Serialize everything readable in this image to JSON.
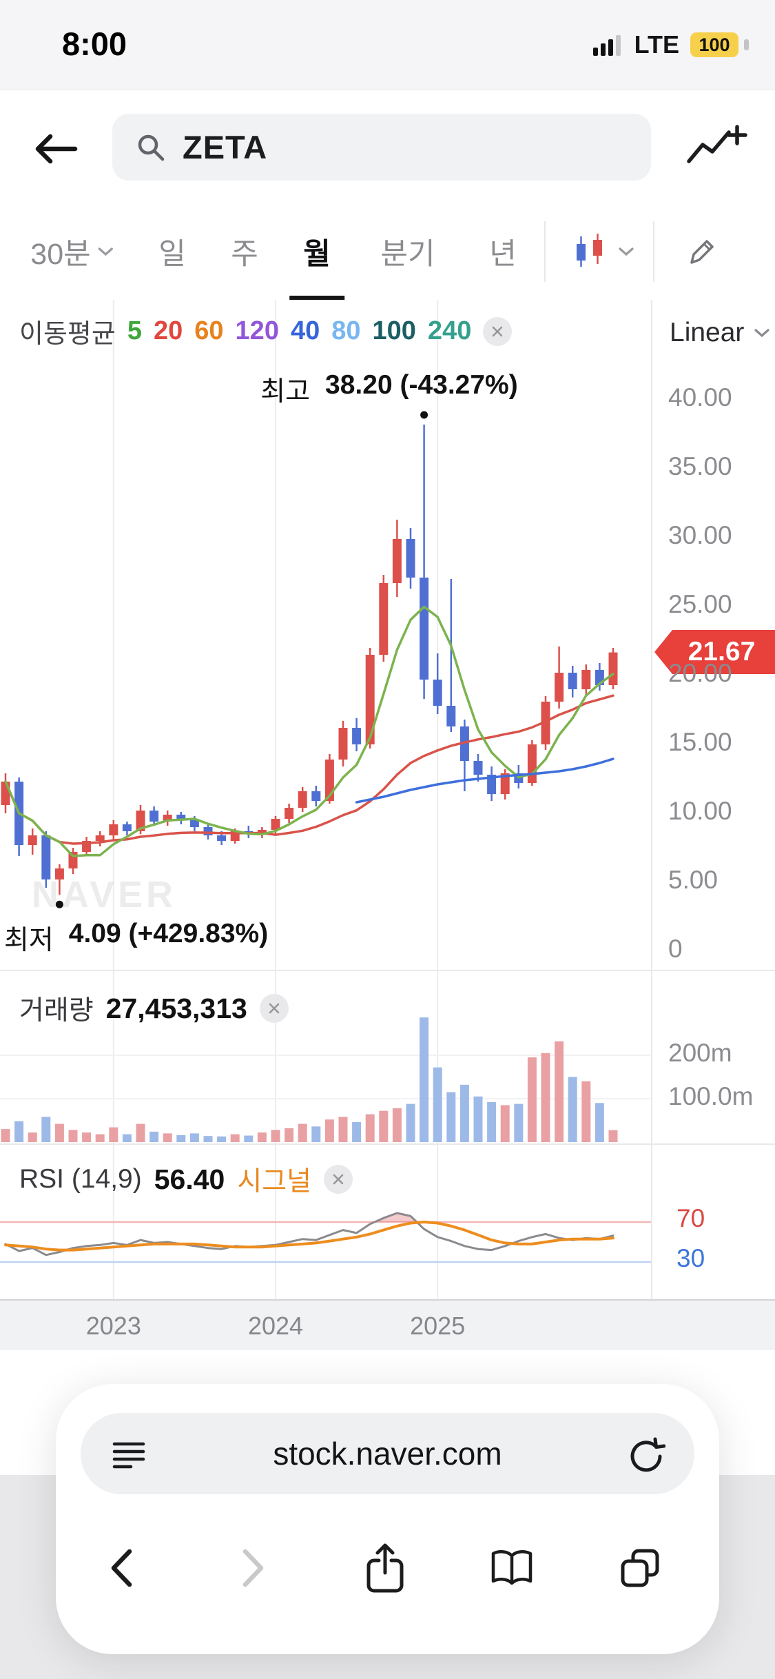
{
  "status_bar": {
    "time": "8:00",
    "network": "LTE",
    "battery_percent": "100"
  },
  "header": {
    "search_value": "ZETA"
  },
  "tabs": {
    "items": [
      {
        "label": "30분"
      },
      {
        "label": "일"
      },
      {
        "label": "주"
      },
      {
        "label": "월"
      },
      {
        "label": "분기"
      },
      {
        "label": "년"
      }
    ],
    "active_index": 3
  },
  "chart": {
    "ma_label": "이동평균",
    "ma_periods": [
      {
        "value": "5",
        "color": "#3fa63c"
      },
      {
        "value": "20",
        "color": "#e0473d"
      },
      {
        "value": "60",
        "color": "#e8821e"
      },
      {
        "value": "120",
        "color": "#9256d9"
      },
      {
        "value": "40",
        "color": "#3565d9"
      },
      {
        "value": "80",
        "color": "#78b6f2"
      },
      {
        "value": "100",
        "color": "#1b5e63"
      },
      {
        "value": "240",
        "color": "#35a08d"
      }
    ],
    "scale_label": "Linear",
    "high_label": "최고",
    "high_value": "38.20 (-43.27%)",
    "low_label": "최저",
    "low_value": "4.09 (+429.83%)",
    "current_price": "21.67",
    "watermark": "NAVER",
    "y_axis_labels": [
      "40.00",
      "35.00",
      "30.00",
      "25.00",
      "20.00",
      "15.00",
      "10.00",
      "5.00",
      "0"
    ]
  },
  "volume_panel": {
    "label": "거래량",
    "value": "27,453,313",
    "y_axis_labels": [
      "200m",
      "100.0m"
    ]
  },
  "rsi_panel": {
    "label": "RSI (14,9)",
    "value": "56.40",
    "signal_label": "시그널",
    "levels": [
      {
        "label": "70",
        "value": 70,
        "color": "#d84a42"
      },
      {
        "label": "30",
        "value": 30,
        "color": "#3b76d9"
      }
    ]
  },
  "browser": {
    "url": "stock.naver.com"
  },
  "chart_data": {
    "type": "candlestick",
    "interval": "monthly",
    "y_range": [
      0,
      42.5
    ],
    "candles": [
      [
        10.6,
        12.9,
        10.0,
        12.3,
        30
      ],
      [
        12.3,
        12.6,
        6.9,
        7.7,
        48
      ],
      [
        7.7,
        8.9,
        7.0,
        8.4,
        22
      ],
      [
        8.4,
        8.7,
        4.6,
        5.2,
        58
      ],
      [
        5.2,
        6.3,
        4.09,
        6.0,
        42
      ],
      [
        6.0,
        7.5,
        5.6,
        7.2,
        28
      ],
      [
        7.2,
        8.3,
        6.9,
        8.0,
        22
      ],
      [
        8.0,
        8.7,
        7.6,
        8.4,
        18
      ],
      [
        8.4,
        9.5,
        8.1,
        9.2,
        34
      ],
      [
        9.2,
        9.4,
        8.4,
        8.7,
        18
      ],
      [
        8.7,
        10.6,
        8.5,
        10.2,
        42
      ],
      [
        10.2,
        10.5,
        9.1,
        9.4,
        24
      ],
      [
        9.4,
        10.2,
        9.1,
        9.9,
        20
      ],
      [
        9.9,
        10.1,
        9.2,
        9.5,
        16
      ],
      [
        9.5,
        9.8,
        8.7,
        9.0,
        20
      ],
      [
        9.0,
        9.3,
        8.1,
        8.4,
        14
      ],
      [
        8.4,
        8.7,
        7.7,
        8.0,
        13
      ],
      [
        8.0,
        8.9,
        7.8,
        8.7,
        18
      ],
      [
        8.7,
        9.1,
        8.2,
        8.5,
        15
      ],
      [
        8.5,
        9.0,
        8.2,
        8.8,
        22
      ],
      [
        8.8,
        9.8,
        8.5,
        9.6,
        28
      ],
      [
        9.6,
        10.7,
        9.3,
        10.4,
        32
      ],
      [
        10.4,
        11.9,
        10.1,
        11.6,
        42
      ],
      [
        11.6,
        12.0,
        10.5,
        10.9,
        36
      ],
      [
        10.9,
        14.3,
        10.7,
        13.9,
        52
      ],
      [
        13.9,
        16.7,
        13.4,
        16.2,
        58
      ],
      [
        16.2,
        16.9,
        14.5,
        15.0,
        46
      ],
      [
        15.0,
        22.0,
        14.7,
        21.5,
        64
      ],
      [
        21.5,
        27.3,
        21.0,
        26.7,
        72
      ],
      [
        26.7,
        31.3,
        25.7,
        29.9,
        78
      ],
      [
        29.9,
        30.7,
        26.3,
        27.1,
        88
      ],
      [
        27.1,
        38.2,
        18.3,
        19.7,
        287
      ],
      [
        19.7,
        21.6,
        17.2,
        17.8,
        172
      ],
      [
        17.8,
        27.0,
        15.9,
        16.3,
        115
      ],
      [
        16.3,
        16.8,
        11.6,
        13.8,
        132
      ],
      [
        13.8,
        14.3,
        12.3,
        12.8,
        105
      ],
      [
        12.8,
        13.4,
        10.9,
        11.4,
        92
      ],
      [
        11.4,
        13.2,
        11.0,
        12.9,
        85
      ],
      [
        12.9,
        13.5,
        11.8,
        12.2,
        88
      ],
      [
        12.2,
        15.3,
        12.0,
        15.0,
        195
      ],
      [
        15.0,
        18.5,
        14.6,
        18.1,
        205
      ],
      [
        18.1,
        22.1,
        17.6,
        20.2,
        232
      ],
      [
        20.2,
        20.7,
        18.4,
        19.0,
        150
      ],
      [
        19.0,
        20.8,
        18.5,
        20.4,
        140
      ],
      [
        20.4,
        20.9,
        18.9,
        19.3,
        90
      ],
      [
        19.3,
        22.0,
        19.0,
        21.67,
        27.45
      ]
    ],
    "ma40_line": {
      "start_index": 26,
      "values": [
        10.8,
        11.0,
        11.2,
        11.45,
        11.7,
        11.9,
        12.1,
        12.25,
        12.4,
        12.5,
        12.6,
        12.7,
        12.78,
        12.85,
        12.95,
        13.05,
        13.2,
        13.4,
        13.65,
        13.95
      ]
    },
    "rsi": [
      48,
      41,
      44,
      37,
      40,
      44,
      46,
      47,
      49,
      47,
      52,
      49,
      50,
      48,
      46,
      44,
      43,
      46,
      45,
      46,
      47,
      50,
      53,
      52,
      57,
      62,
      59,
      68,
      74,
      79,
      76,
      63,
      55,
      51,
      46,
      43,
      42,
      46,
      51,
      55,
      58,
      54,
      52,
      54,
      53,
      56.4
    ],
    "rsi_signal": [
      47,
      46,
      45,
      43,
      42,
      42,
      43,
      44,
      45,
      46,
      47,
      48,
      48,
      48,
      48,
      47,
      46,
      45,
      45,
      45,
      46,
      47,
      48,
      49,
      51,
      53,
      55,
      58,
      62,
      66,
      69,
      70,
      69,
      66,
      62,
      57,
      52,
      49,
      48,
      48,
      50,
      52,
      53,
      53,
      53,
      54
    ],
    "high_marker": {
      "index": 31,
      "price": 38.2
    },
    "low_marker": {
      "index": 4,
      "price": 4.09
    },
    "year_ticks": [
      {
        "label": "2023",
        "index": 8
      },
      {
        "label": "2024",
        "index": 20
      },
      {
        "label": "2025",
        "index": 32
      }
    ],
    "colors": {
      "up": "#dc4f4a",
      "down": "#4f70d2",
      "volume_up": "#e9a0a3",
      "volume_down": "#9db9e8",
      "ma5": "#7cb34e",
      "ma20": "#d9534a",
      "ma40": "#3e6fdc",
      "rsi_line": "#8a8a8e",
      "rsi_signal": "#ed8d1f",
      "rsi_fill": "rgba(222,93,93,0.32)",
      "rsi_level_high": "#f2b6b6",
      "rsi_level_low": "#bfd2f2",
      "grid": "#ededf0"
    }
  }
}
